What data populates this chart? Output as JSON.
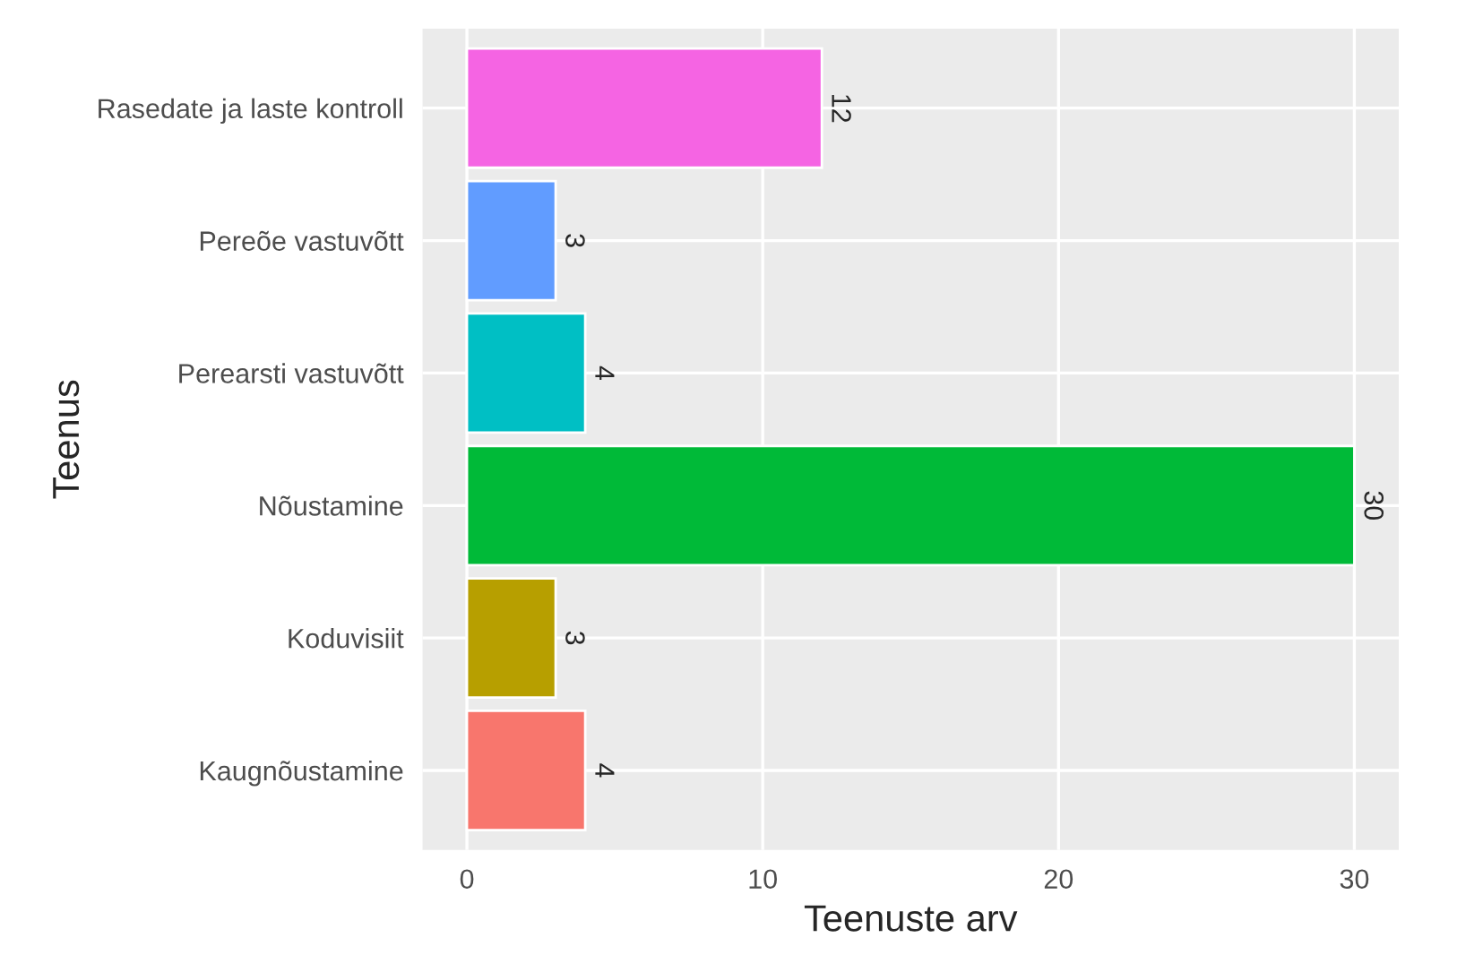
{
  "chart_data": {
    "type": "bar",
    "orientation": "horizontal",
    "categories": [
      "Rasedate ja laste kontroll",
      "Pereõe vastuvõtt",
      "Perearsti vastuvõtt",
      "Nõustamine",
      "Koduvisiit",
      "Kaugnõustamine"
    ],
    "values": [
      12,
      3,
      4,
      30,
      3,
      4
    ],
    "colors": [
      "#f564e3",
      "#619cff",
      "#00bfc4",
      "#00ba38",
      "#b79f00",
      "#f8766d"
    ],
    "xlabel": "Teenuste arv",
    "ylabel": "Teenus",
    "xlim": [
      -1.5,
      31.5
    ],
    "xticks": [
      0,
      10,
      20,
      30
    ],
    "grid": true,
    "data_labels": true
  }
}
